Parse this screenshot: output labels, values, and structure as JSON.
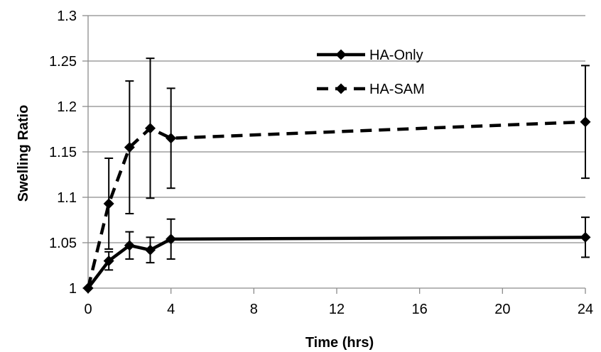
{
  "chart_data": {
    "type": "line",
    "xlabel": "Time (hrs)",
    "ylabel": "Swelling Ratio",
    "xlim": [
      0,
      24
    ],
    "ylim": [
      1,
      1.3
    ],
    "x_ticks": [
      "0",
      "4",
      "8",
      "12",
      "16",
      "20",
      "24"
    ],
    "y_ticks": [
      "1",
      "1.05",
      "1.1",
      "1.15",
      "1.2",
      "1.25",
      "1.3"
    ],
    "grid": "horizontal",
    "legend_position": "top-center",
    "series": [
      {
        "name": "HA-Only",
        "style": "solid",
        "color": "#000000",
        "x": [
          0,
          1,
          2,
          3,
          4,
          24
        ],
        "y": [
          1.0,
          1.03,
          1.047,
          1.042,
          1.054,
          1.056
        ],
        "error": [
          0,
          0.01,
          0.015,
          0.014,
          0.022,
          0.022
        ]
      },
      {
        "name": "HA-SAM",
        "style": "dashed",
        "color": "#000000",
        "x": [
          0,
          1,
          2,
          3,
          4,
          24
        ],
        "y": [
          1.0,
          1.093,
          1.155,
          1.176,
          1.165,
          1.183
        ],
        "error": [
          0,
          0.05,
          0.073,
          0.077,
          0.055,
          0.062
        ]
      }
    ]
  }
}
